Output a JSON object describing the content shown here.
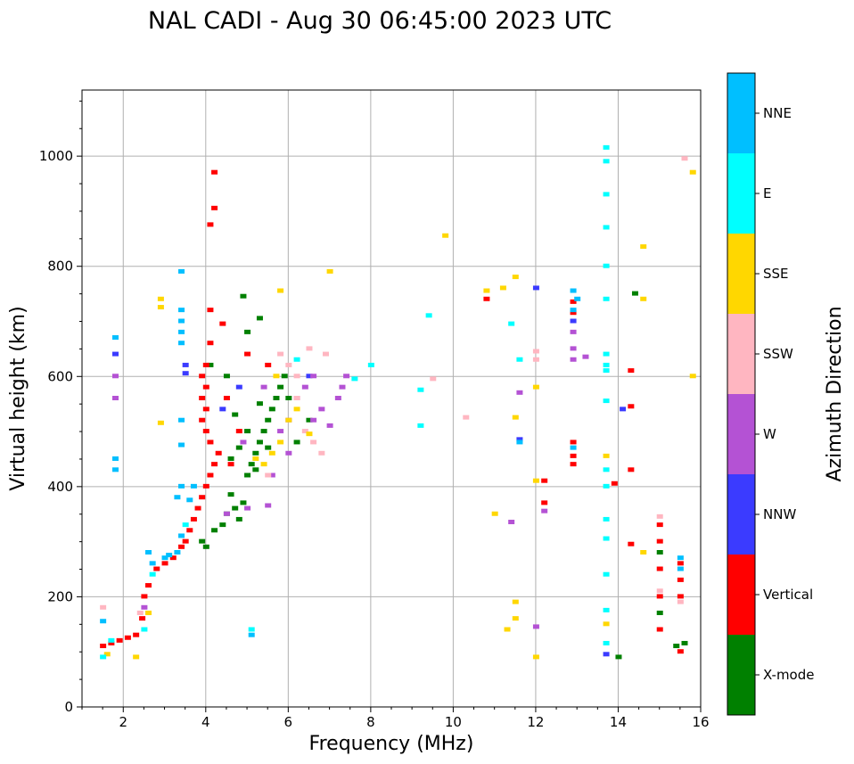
{
  "chart_data": {
    "type": "scatter",
    "title": "NAL CADI - Aug 30 06:45:00 2023 UTC",
    "xlabel": "Frequency (MHz)",
    "ylabel": "Virtual height (km)",
    "xlim": [
      1,
      16
    ],
    "ylim": [
      0,
      1120
    ],
    "xticks": [
      2,
      4,
      6,
      8,
      10,
      12,
      14,
      16
    ],
    "yticks": [
      0,
      200,
      400,
      600,
      800,
      1000
    ],
    "grid": true,
    "colorbar": {
      "title": "Azimuth Direction",
      "categories": [
        {
          "label": "X-mode",
          "color": "#008000"
        },
        {
          "label": "Vertical",
          "color": "#ff0000"
        },
        {
          "label": "NNW",
          "color": "#3b3bff"
        },
        {
          "label": "W",
          "color": "#b452d4"
        },
        {
          "label": "SSW",
          "color": "#ffb6c1"
        },
        {
          "label": "SSE",
          "color": "#ffd700"
        },
        {
          "label": "E",
          "color": "#00ffff"
        },
        {
          "label": "NNE",
          "color": "#00bfff"
        }
      ]
    },
    "series": [
      {
        "name": "X-mode",
        "points": [
          [
            4.6,
            385
          ],
          [
            4.7,
            360
          ],
          [
            4.8,
            340
          ],
          [
            4.9,
            370
          ],
          [
            4.5,
            350
          ],
          [
            4.4,
            330
          ],
          [
            4.2,
            320
          ],
          [
            4.0,
            290
          ],
          [
            3.9,
            300
          ],
          [
            5.0,
            420
          ],
          [
            5.1,
            440
          ],
          [
            5.2,
            460
          ],
          [
            5.3,
            480
          ],
          [
            5.4,
            500
          ],
          [
            5.5,
            520
          ],
          [
            5.2,
            430
          ],
          [
            5.6,
            540
          ],
          [
            5.7,
            560
          ],
          [
            5.8,
            580
          ],
          [
            5.9,
            600
          ],
          [
            6.0,
            560
          ],
          [
            4.7,
            530
          ],
          [
            4.8,
            470
          ],
          [
            5.0,
            500
          ],
          [
            4.6,
            450
          ],
          [
            5.3,
            550
          ],
          [
            5.5,
            470
          ],
          [
            4.9,
            745
          ],
          [
            5.3,
            705
          ],
          [
            5.0,
            680
          ],
          [
            4.1,
            620
          ],
          [
            4.5,
            600
          ],
          [
            14.0,
            90
          ],
          [
            14.4,
            750
          ],
          [
            15.0,
            280
          ],
          [
            15.0,
            170
          ],
          [
            15.4,
            110
          ],
          [
            15.6,
            115
          ],
          [
            6.5,
            520
          ],
          [
            6.2,
            480
          ]
        ]
      },
      {
        "name": "Vertical",
        "points": [
          [
            1.5,
            110
          ],
          [
            1.7,
            115
          ],
          [
            1.9,
            120
          ],
          [
            2.1,
            125
          ],
          [
            2.3,
            130
          ],
          [
            2.45,
            160
          ],
          [
            2.5,
            200
          ],
          [
            2.6,
            220
          ],
          [
            2.8,
            250
          ],
          [
            3.0,
            260
          ],
          [
            3.2,
            270
          ],
          [
            3.4,
            290
          ],
          [
            3.5,
            300
          ],
          [
            3.6,
            320
          ],
          [
            3.7,
            340
          ],
          [
            3.8,
            360
          ],
          [
            3.9,
            380
          ],
          [
            4.0,
            400
          ],
          [
            4.1,
            420
          ],
          [
            4.2,
            440
          ],
          [
            4.3,
            460
          ],
          [
            4.1,
            480
          ],
          [
            4.0,
            500
          ],
          [
            3.9,
            520
          ],
          [
            4.0,
            540
          ],
          [
            3.9,
            560
          ],
          [
            4.0,
            580
          ],
          [
            3.9,
            600
          ],
          [
            4.0,
            620
          ],
          [
            4.1,
            660
          ],
          [
            4.1,
            720
          ],
          [
            4.2,
            970
          ],
          [
            4.2,
            905
          ],
          [
            4.1,
            875
          ],
          [
            4.4,
            695
          ],
          [
            4.6,
            440
          ],
          [
            4.8,
            500
          ],
          [
            12.9,
            735
          ],
          [
            12.9,
            715
          ],
          [
            12.9,
            480
          ],
          [
            12.9,
            455
          ],
          [
            12.9,
            440
          ],
          [
            12.2,
            410
          ],
          [
            12.2,
            370
          ],
          [
            13.9,
            405
          ],
          [
            14.3,
            295
          ],
          [
            14.3,
            430
          ],
          [
            14.3,
            545
          ],
          [
            14.3,
            610
          ],
          [
            15.0,
            330
          ],
          [
            15.0,
            300
          ],
          [
            15.0,
            250
          ],
          [
            15.0,
            200
          ],
          [
            15.0,
            140
          ],
          [
            15.5,
            260
          ],
          [
            15.5,
            230
          ],
          [
            15.5,
            200
          ],
          [
            15.5,
            100
          ],
          [
            10.8,
            740
          ],
          [
            4.5,
            560
          ],
          [
            5.0,
            640
          ],
          [
            5.5,
            620
          ]
        ]
      },
      {
        "name": "NNW",
        "points": [
          [
            1.8,
            640
          ],
          [
            3.5,
            620
          ],
          [
            3.5,
            605
          ],
          [
            4.4,
            540
          ],
          [
            4.8,
            580
          ],
          [
            12.9,
            700
          ],
          [
            13.7,
            95
          ],
          [
            14.1,
            540
          ],
          [
            12.0,
            760
          ],
          [
            6.5,
            600
          ],
          [
            11.6,
            485
          ]
        ]
      },
      {
        "name": "W",
        "points": [
          [
            1.8,
            600
          ],
          [
            1.8,
            560
          ],
          [
            2.5,
            180
          ],
          [
            4.5,
            350
          ],
          [
            5.0,
            360
          ],
          [
            5.5,
            365
          ],
          [
            5.6,
            420
          ],
          [
            5.8,
            500
          ],
          [
            6.0,
            520
          ],
          [
            6.2,
            560
          ],
          [
            6.4,
            580
          ],
          [
            6.6,
            600
          ],
          [
            6.8,
            540
          ],
          [
            7.0,
            510
          ],
          [
            7.2,
            560
          ],
          [
            7.3,
            580
          ],
          [
            7.4,
            600
          ],
          [
            4.9,
            480
          ],
          [
            5.4,
            580
          ],
          [
            12.9,
            680
          ],
          [
            12.9,
            650
          ],
          [
            12.9,
            630
          ],
          [
            13.2,
            635
          ],
          [
            11.6,
            570
          ],
          [
            12.0,
            145
          ],
          [
            12.2,
            355
          ],
          [
            6.0,
            460
          ],
          [
            6.6,
            520
          ],
          [
            11.4,
            335
          ]
        ]
      },
      {
        "name": "SSW",
        "points": [
          [
            1.5,
            180
          ],
          [
            2.4,
            170
          ],
          [
            5.8,
            640
          ],
          [
            6.0,
            620
          ],
          [
            6.2,
            560
          ],
          [
            6.4,
            500
          ],
          [
            6.6,
            480
          ],
          [
            6.8,
            460
          ],
          [
            5.5,
            420
          ],
          [
            6.5,
            650
          ],
          [
            6.9,
            640
          ],
          [
            10.3,
            525
          ],
          [
            12.0,
            645
          ],
          [
            12.0,
            630
          ],
          [
            15.0,
            345
          ],
          [
            15.0,
            210
          ],
          [
            15.5,
            190
          ],
          [
            15.6,
            995
          ],
          [
            9.5,
            595
          ],
          [
            6.2,
            600
          ]
        ]
      },
      {
        "name": "SSE",
        "points": [
          [
            1.6,
            95
          ],
          [
            2.3,
            90
          ],
          [
            2.6,
            170
          ],
          [
            2.9,
            740
          ],
          [
            2.9,
            725
          ],
          [
            2.9,
            515
          ],
          [
            5.2,
            450
          ],
          [
            5.4,
            440
          ],
          [
            5.6,
            460
          ],
          [
            5.8,
            480
          ],
          [
            6.0,
            520
          ],
          [
            6.2,
            540
          ],
          [
            5.7,
            600
          ],
          [
            5.8,
            755
          ],
          [
            7.0,
            790
          ],
          [
            9.8,
            855
          ],
          [
            10.8,
            755
          ],
          [
            11.2,
            760
          ],
          [
            11.5,
            780
          ],
          [
            11.5,
            525
          ],
          [
            11.5,
            190
          ],
          [
            11.5,
            160
          ],
          [
            11.3,
            140
          ],
          [
            12.0,
            90
          ],
          [
            12.0,
            410
          ],
          [
            12.0,
            580
          ],
          [
            13.7,
            455
          ],
          [
            13.7,
            150
          ],
          [
            14.6,
            835
          ],
          [
            14.6,
            740
          ],
          [
            14.6,
            280
          ],
          [
            15.8,
            970
          ],
          [
            15.8,
            600
          ],
          [
            11.0,
            350
          ],
          [
            6.5,
            495
          ]
        ]
      },
      {
        "name": "E",
        "points": [
          [
            1.5,
            90
          ],
          [
            1.7,
            120
          ],
          [
            2.5,
            140
          ],
          [
            2.7,
            240
          ],
          [
            3.5,
            330
          ],
          [
            5.1,
            140
          ],
          [
            9.2,
            510
          ],
          [
            9.2,
            575
          ],
          [
            9.4,
            710
          ],
          [
            11.4,
            695
          ],
          [
            11.6,
            630
          ],
          [
            13.7,
            1015
          ],
          [
            13.7,
            990
          ],
          [
            13.7,
            930
          ],
          [
            13.7,
            870
          ],
          [
            13.7,
            800
          ],
          [
            13.7,
            740
          ],
          [
            13.7,
            640
          ],
          [
            13.7,
            620
          ],
          [
            13.7,
            610
          ],
          [
            13.7,
            555
          ],
          [
            13.7,
            430
          ],
          [
            13.7,
            400
          ],
          [
            13.7,
            340
          ],
          [
            13.7,
            305
          ],
          [
            13.7,
            240
          ],
          [
            13.7,
            175
          ],
          [
            13.7,
            115
          ],
          [
            8.0,
            620
          ],
          [
            7.6,
            595
          ],
          [
            6.2,
            630
          ]
        ]
      },
      {
        "name": "NNE",
        "points": [
          [
            1.5,
            155
          ],
          [
            1.8,
            450
          ],
          [
            1.8,
            430
          ],
          [
            1.8,
            670
          ],
          [
            2.6,
            280
          ],
          [
            2.7,
            260
          ],
          [
            3.0,
            270
          ],
          [
            3.1,
            275
          ],
          [
            3.3,
            280
          ],
          [
            3.4,
            520
          ],
          [
            3.4,
            475
          ],
          [
            3.4,
            400
          ],
          [
            3.4,
            310
          ],
          [
            3.4,
            790
          ],
          [
            3.4,
            720
          ],
          [
            3.4,
            700
          ],
          [
            3.4,
            680
          ],
          [
            3.4,
            660
          ],
          [
            3.7,
            400
          ],
          [
            3.6,
            375
          ],
          [
            3.3,
            380
          ],
          [
            12.9,
            755
          ],
          [
            12.9,
            720
          ],
          [
            12.9,
            470
          ],
          [
            15.5,
            270
          ],
          [
            15.5,
            250
          ],
          [
            11.6,
            480
          ],
          [
            13.0,
            740
          ],
          [
            5.1,
            130
          ]
        ]
      }
    ]
  }
}
